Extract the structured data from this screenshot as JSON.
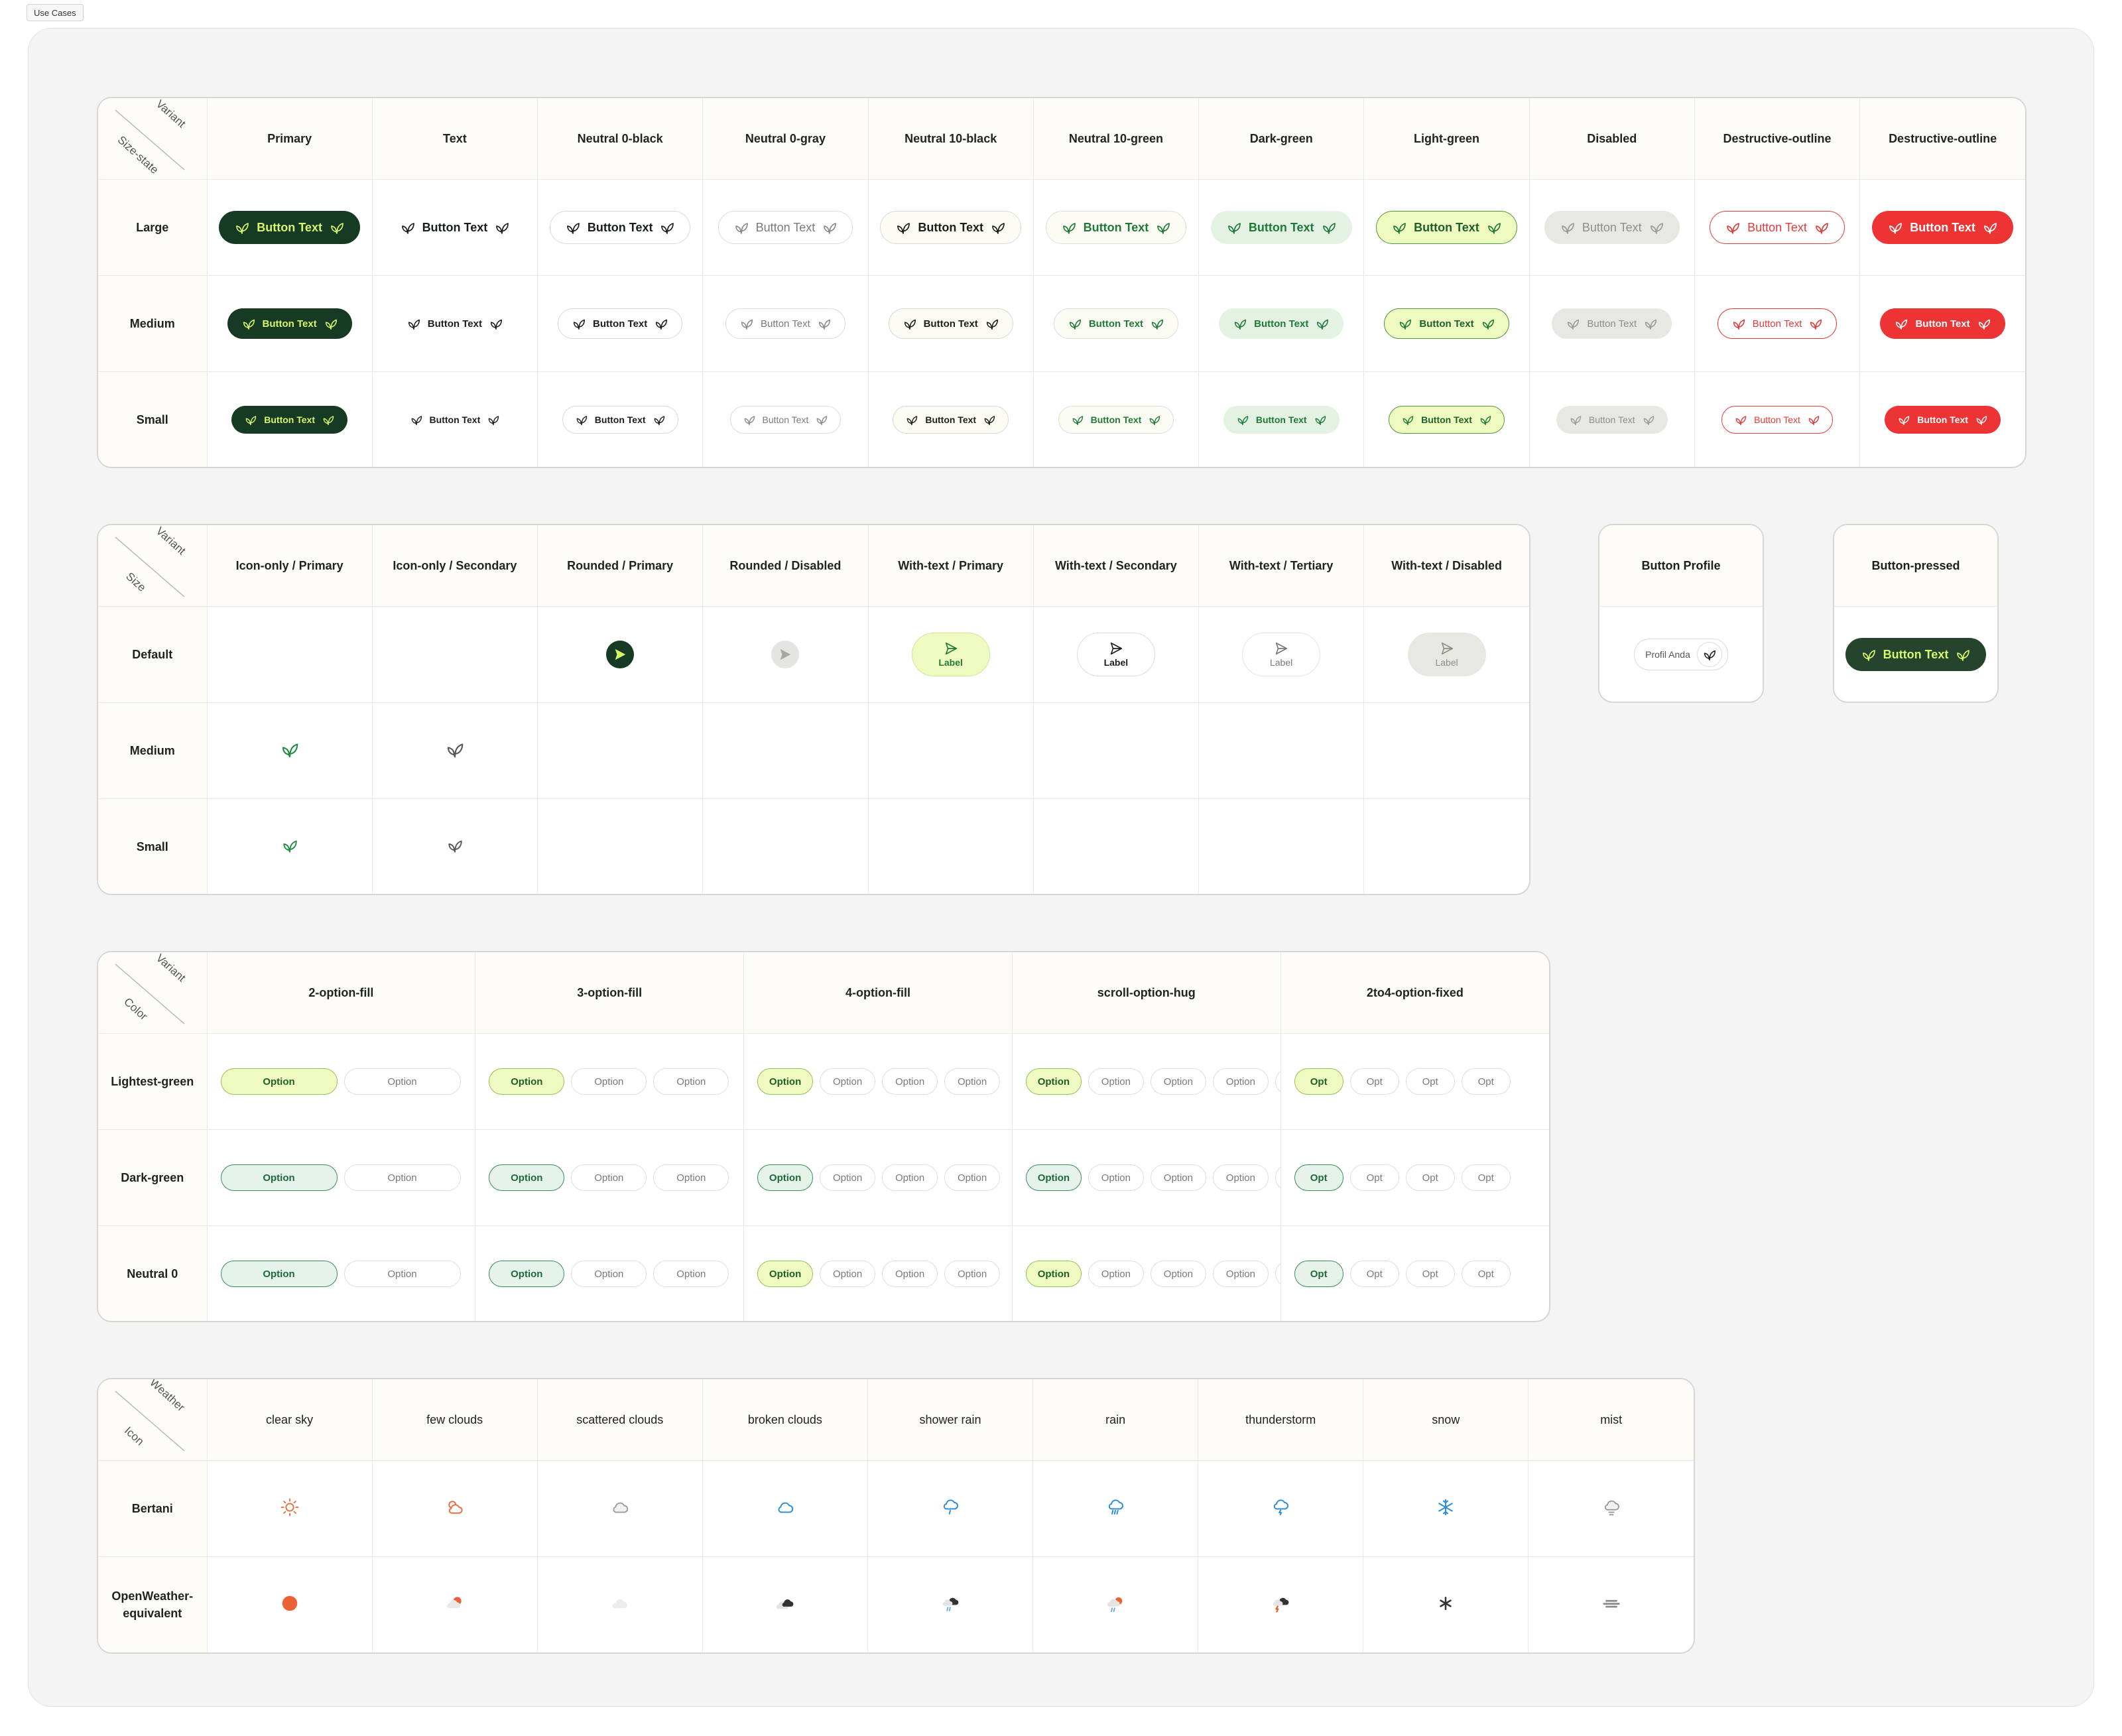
{
  "tag": "Use Cases",
  "buttons": {
    "corner_top": "Variant",
    "corner_bottom": "Size-state",
    "headers": [
      "Primary",
      "Text",
      "Neutral 0-black",
      "Neutral 0-gray",
      "Neutral 10-black",
      "Neutral 10-green",
      "Dark-green",
      "Light-green",
      "Disabled",
      "Destructive-outline",
      "Destructive-outline"
    ],
    "rows": [
      "Large",
      "Medium",
      "Small"
    ],
    "button_label": "Button Text",
    "icon": "leaf-icon"
  },
  "icon_buttons": {
    "corner_top": "Variant",
    "corner_bottom": "Size",
    "headers": [
      "Icon-only / Primary",
      "Icon-only / Secondary",
      "Rounded / Primary",
      "Rounded / Disabled",
      "With-text / Primary",
      "With-text / Secondary",
      "With-text / Tertiary",
      "With-text / Disabled"
    ],
    "rows": [
      "Default",
      "Medium",
      "Small"
    ],
    "label": "Label",
    "icons": [
      "leaf-icon",
      "send-icon"
    ]
  },
  "profile_card": {
    "title": "Button Profile",
    "label": "Profil Anda"
  },
  "pressed_card": {
    "title": "Button-pressed",
    "label": "Button Text"
  },
  "options": {
    "corner_top": "Variant",
    "corner_bottom": "Color",
    "headers": [
      "2-option-fill",
      "3-option-fill",
      "4-option-fill",
      "scroll-option-hug",
      "2to4-option-fixed"
    ],
    "rows": [
      "Lightest-green",
      "Dark-green",
      "Neutral 0"
    ],
    "option": "Option",
    "opt": "Opt"
  },
  "weather": {
    "corner_top": "Weather",
    "corner_bottom": "Icon",
    "headers": [
      "clear sky",
      "few clouds",
      "scattered clouds",
      "broken clouds",
      "shower rain",
      "rain",
      "thunderstorm",
      "snow",
      "mist"
    ],
    "row_bertani": "Bertani",
    "row_ow_1": "OpenWeather-",
    "row_ow_2": "equivalent",
    "icons": [
      "sun-icon",
      "sun-cloud-icon",
      "cloud-icon",
      "cloud-icon",
      "shower-icon",
      "rain-icon",
      "storm-icon",
      "snowflake-icon",
      "mist-icon"
    ]
  },
  "colors": {
    "primary": "#163a23",
    "accent": "#d8f66a",
    "green": "#1f7a3a",
    "destructive": "#ec3434",
    "weather_blue": "#2f8fd6",
    "weather_orange": "#e76a3c"
  }
}
